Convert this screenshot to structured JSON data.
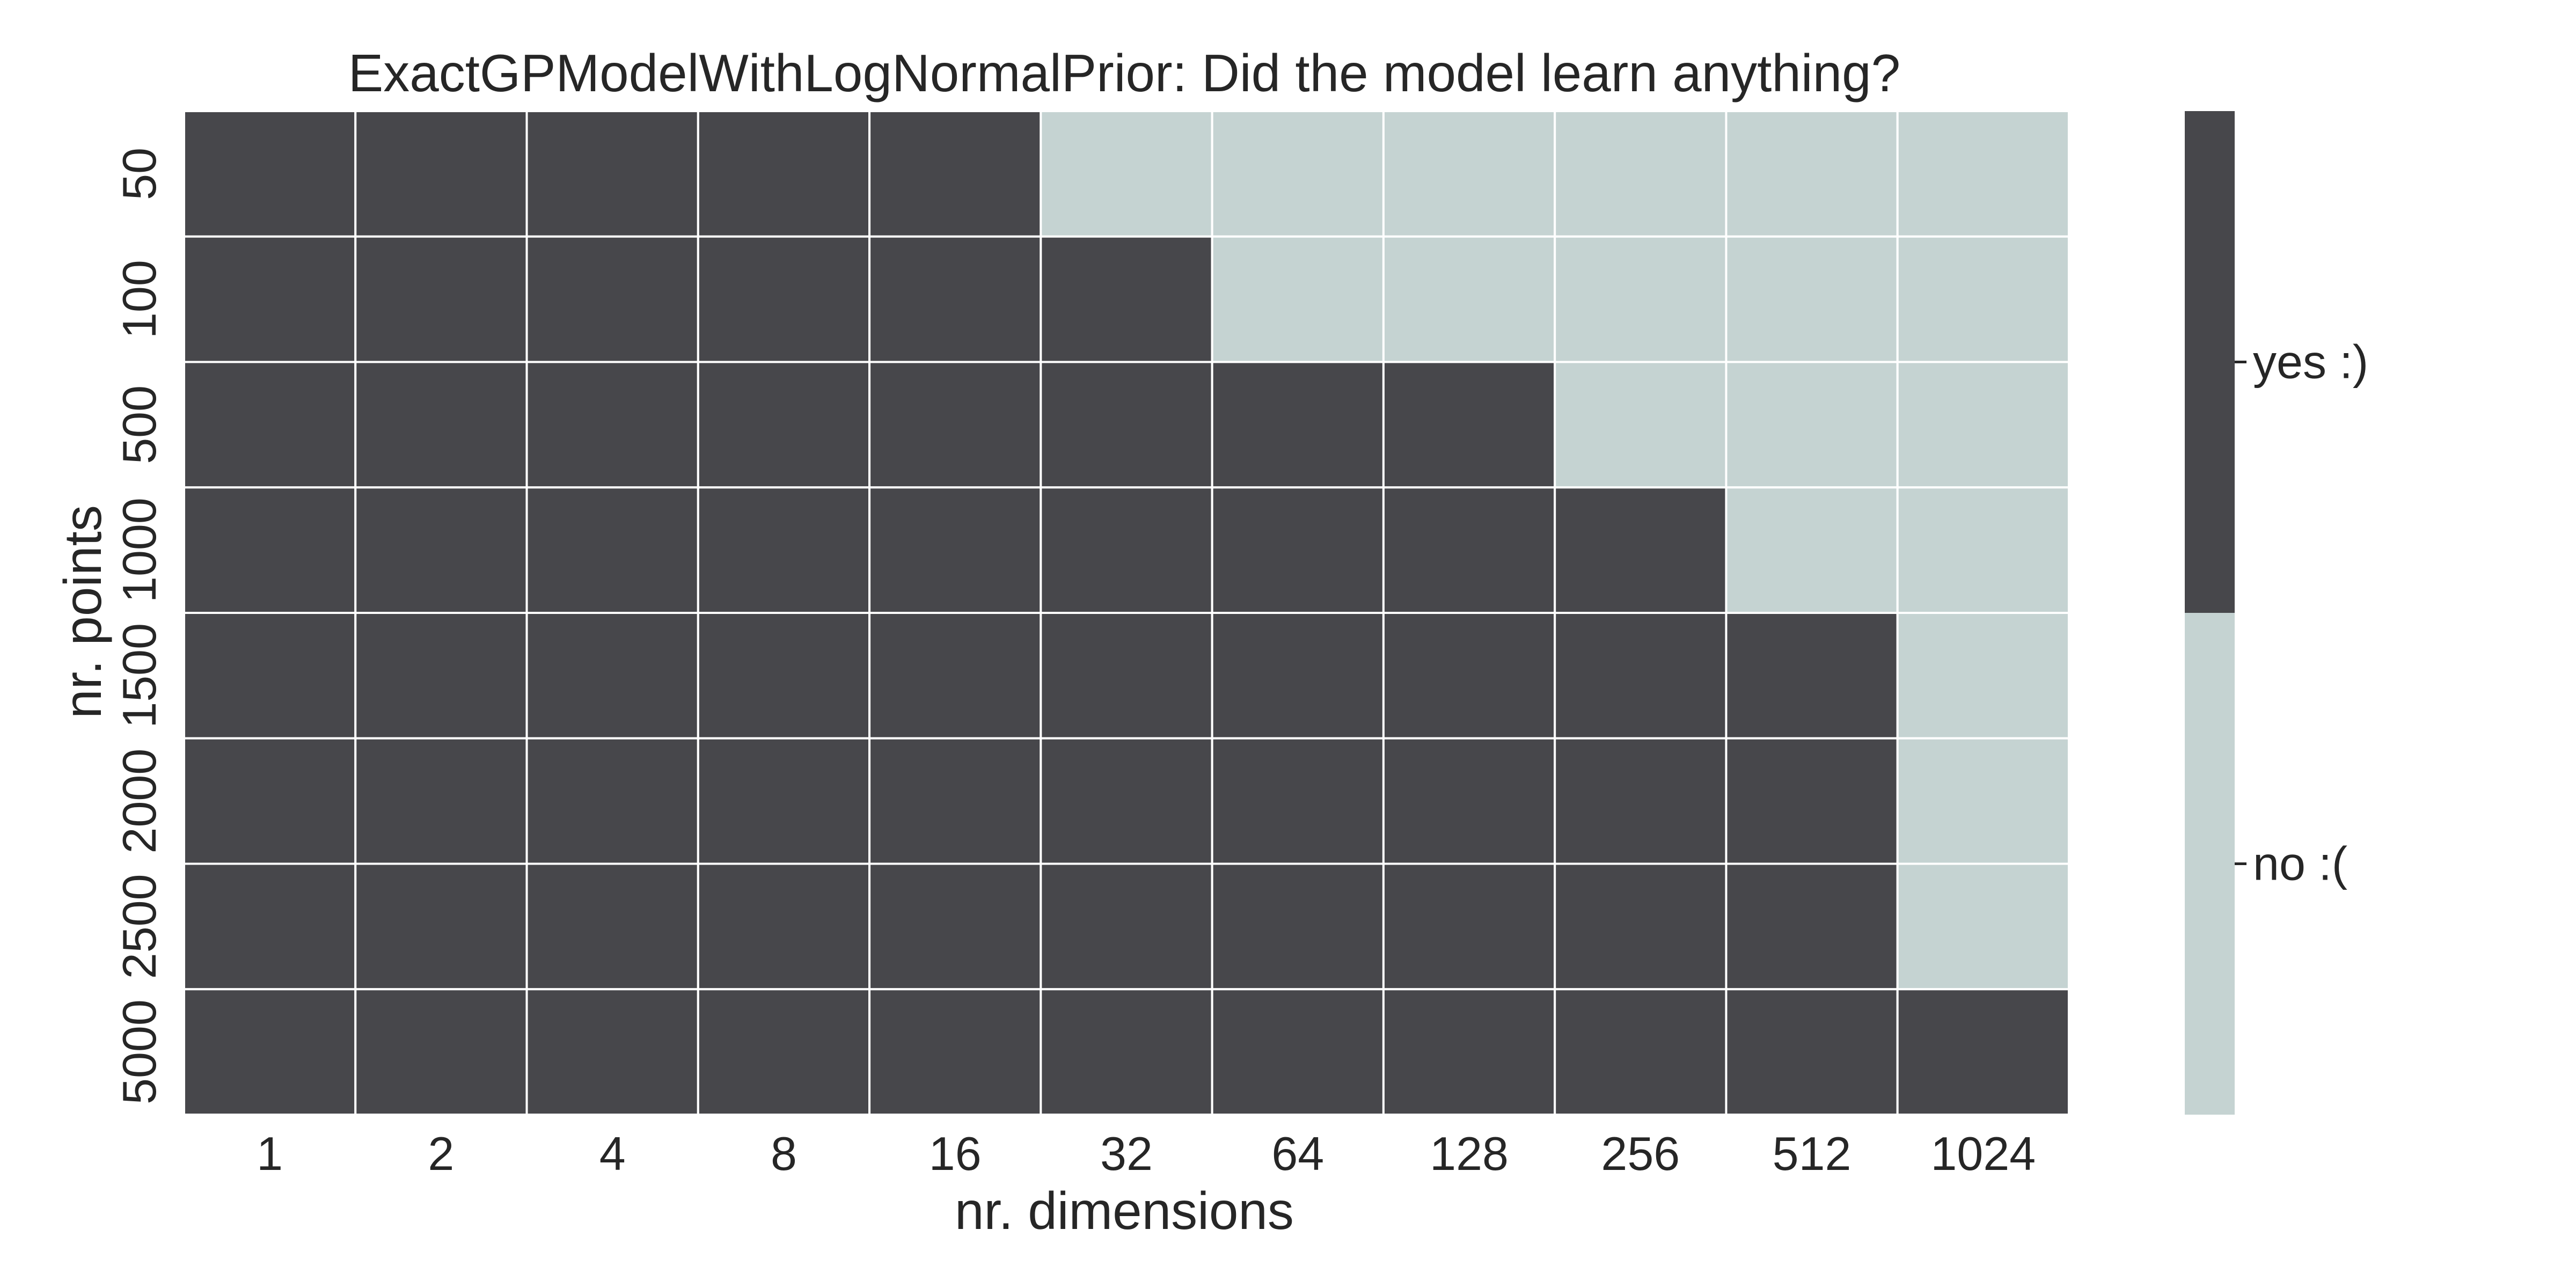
{
  "chart_data": {
    "type": "heatmap",
    "title": "ExactGPModelWithLogNormalPrior: Did the model learn anything?",
    "xlabel": "nr. dimensions",
    "ylabel": "nr. points",
    "x_categories": [
      "1",
      "2",
      "4",
      "8",
      "16",
      "32",
      "64",
      "128",
      "256",
      "512",
      "1024"
    ],
    "y_categories": [
      "50",
      "100",
      "500",
      "1000",
      "1500",
      "2000",
      "2500",
      "5000"
    ],
    "values": [
      [
        1,
        1,
        1,
        1,
        1,
        0,
        0,
        0,
        0,
        0,
        0
      ],
      [
        1,
        1,
        1,
        1,
        1,
        1,
        0,
        0,
        0,
        0,
        0
      ],
      [
        1,
        1,
        1,
        1,
        1,
        1,
        1,
        1,
        0,
        0,
        0
      ],
      [
        1,
        1,
        1,
        1,
        1,
        1,
        1,
        1,
        1,
        0,
        0
      ],
      [
        1,
        1,
        1,
        1,
        1,
        1,
        1,
        1,
        1,
        1,
        0
      ],
      [
        1,
        1,
        1,
        1,
        1,
        1,
        1,
        1,
        1,
        1,
        0
      ],
      [
        1,
        1,
        1,
        1,
        1,
        1,
        1,
        1,
        1,
        1,
        0
      ],
      [
        1,
        1,
        1,
        1,
        1,
        1,
        1,
        1,
        1,
        1,
        1
      ]
    ],
    "colorbar": {
      "labels": [
        {
          "value": 1,
          "label": "yes :)",
          "color": "#47474b"
        },
        {
          "value": 0,
          "label": "no :(",
          "color": "#c5d3d2"
        }
      ]
    },
    "grid_line_color": "#ffffff"
  }
}
